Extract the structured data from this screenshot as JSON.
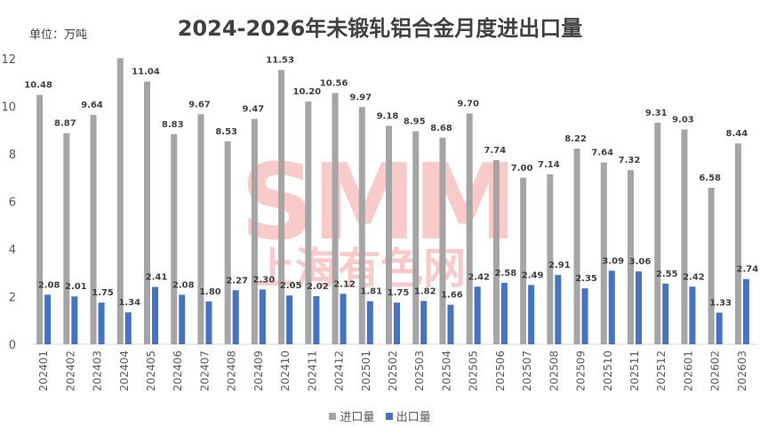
{
  "chart_data": {
    "type": "bar",
    "title": "2024-2026年未锻轧铝合金月度进出口量",
    "unit_label": "单位：万吨",
    "categories": [
      "202401",
      "202402",
      "202403",
      "202404",
      "202405",
      "202406",
      "202407",
      "202408",
      "202409",
      "202410",
      "202411",
      "202412",
      "202501",
      "202502",
      "202503",
      "202504",
      "202505",
      "202506",
      "202507",
      "202508",
      "202509",
      "202510",
      "202511",
      "202512",
      "202601",
      "202602",
      "202603"
    ],
    "series": [
      {
        "name": "进口量",
        "color": "#a5a5a5",
        "values": [
          10.48,
          8.87,
          9.64,
          12.02,
          11.04,
          8.83,
          9.67,
          8.53,
          9.47,
          11.53,
          10.2,
          10.56,
          9.97,
          9.18,
          8.95,
          8.68,
          9.7,
          7.74,
          7.0,
          7.14,
          8.22,
          7.64,
          7.32,
          9.31,
          9.03,
          6.58,
          8.44
        ],
        "labels": [
          "10.48",
          "8.87",
          "9.64",
          "",
          "11.04",
          "8.83",
          "9.67",
          "8.53",
          "9.47",
          "11.53",
          "10.20",
          "10.56",
          "9.97",
          "9.18",
          "8.95",
          "8.68",
          "9.70",
          "7.74",
          "7.00",
          "7.14",
          "8.22",
          "7.64",
          "7.32",
          "9.31",
          "9.03",
          "6.58",
          "8.44"
        ]
      },
      {
        "name": "出口量",
        "color": "#4472c4",
        "values": [
          2.08,
          2.01,
          1.75,
          1.34,
          2.41,
          2.08,
          1.8,
          2.27,
          2.3,
          2.05,
          2.02,
          2.12,
          1.81,
          1.75,
          1.82,
          1.66,
          2.42,
          2.58,
          2.49,
          2.91,
          2.35,
          3.09,
          3.06,
          2.55,
          2.42,
          1.33,
          2.74
        ],
        "labels": [
          "2.08",
          "2.01",
          "1.75",
          "1.34",
          "2.41",
          "2.08",
          "1.80",
          "2.27",
          "2.30",
          "2.05",
          "2.02",
          "2.12",
          "1.81",
          "1.75",
          "1.82",
          "1.66",
          "2.42",
          "2.58",
          "2.49",
          "2.91",
          "2.35",
          "3.09",
          "3.06",
          "2.55",
          "2.42",
          "1.33",
          "2.74"
        ]
      }
    ],
    "ylim": [
      0,
      12
    ],
    "yticks": [
      0,
      2,
      4,
      6,
      8,
      10,
      12
    ],
    "xlabel": "",
    "ylabel": "",
    "grid": false,
    "legend_position": "bottom"
  },
  "watermark": {
    "text_top": "SMM",
    "text_bottom": "上海有色网",
    "color": "#f28b8b"
  }
}
